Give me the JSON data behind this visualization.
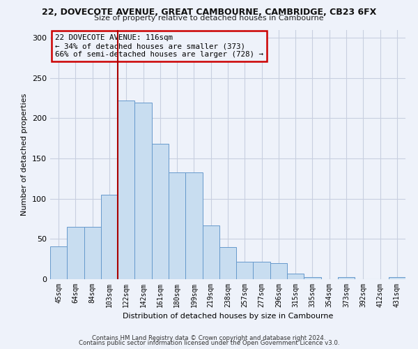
{
  "title": "22, DOVECOTE AVENUE, GREAT CAMBOURNE, CAMBRIDGE, CB23 6FX",
  "subtitle": "Size of property relative to detached houses in Cambourne",
  "xlabel": "Distribution of detached houses by size in Cambourne",
  "ylabel": "Number of detached properties",
  "bar_labels": [
    "45sqm",
    "64sqm",
    "84sqm",
    "103sqm",
    "122sqm",
    "142sqm",
    "161sqm",
    "180sqm",
    "199sqm",
    "219sqm",
    "238sqm",
    "257sqm",
    "277sqm",
    "296sqm",
    "315sqm",
    "335sqm",
    "354sqm",
    "373sqm",
    "392sqm",
    "412sqm",
    "431sqm"
  ],
  "bar_heights": [
    41,
    65,
    65,
    105,
    222,
    219,
    168,
    133,
    133,
    67,
    40,
    22,
    22,
    20,
    7,
    3,
    0,
    3,
    0,
    0,
    3
  ],
  "bar_color": "#c8ddf0",
  "bar_edgecolor": "#6699cc",
  "vline_color": "#aa0000",
  "annotation_text": "22 DOVECOTE AVENUE: 116sqm\n← 34% of detached houses are smaller (373)\n66% of semi-detached houses are larger (728) →",
  "annotation_box_edgecolor": "#cc0000",
  "ylim": [
    0,
    310
  ],
  "yticks": [
    0,
    50,
    100,
    150,
    200,
    250,
    300
  ],
  "footer1": "Contains HM Land Registry data © Crown copyright and database right 2024.",
  "footer2": "Contains public sector information licensed under the Open Government Licence v3.0.",
  "bg_color": "#eef2fa",
  "grid_color": "#c8cfe0"
}
